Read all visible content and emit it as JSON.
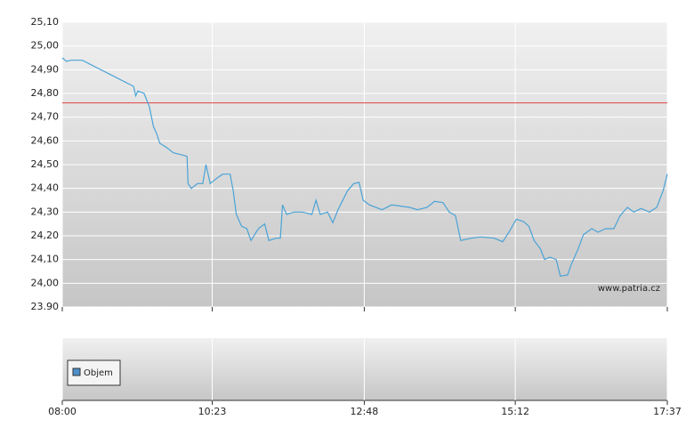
{
  "chart_data": {
    "type": "line",
    "x": [
      480,
      484,
      488,
      499,
      548,
      550,
      552,
      558,
      563,
      567,
      570,
      573,
      580,
      586,
      595,
      599,
      600,
      603,
      609,
      614,
      617,
      621,
      628,
      633,
      640,
      643,
      646,
      651,
      656,
      660,
      667,
      673,
      677,
      684,
      688,
      690,
      694,
      701,
      709,
      718,
      722,
      726,
      733,
      738,
      743,
      752,
      758,
      763,
      767,
      773,
      785,
      794,
      811,
      819,
      828,
      835,
      843,
      849,
      855,
      860,
      870,
      879,
      892,
      900,
      906,
      913,
      920,
      925,
      930,
      936,
      940,
      945,
      951,
      955,
      962,
      965,
      972,
      977,
      985,
      991,
      998,
      1006,
      1012,
      1019,
      1025,
      1032,
      1040,
      1047,
      1053,
      1057
    ],
    "series": [
      {
        "color": "#4aa3d6",
        "values": [
          24.95,
          24.935,
          24.94,
          24.94,
          24.83,
          24.79,
          24.81,
          24.8,
          24.745,
          24.66,
          24.63,
          24.59,
          24.57,
          24.55,
          24.54,
          24.535,
          24.42,
          24.4,
          24.42,
          24.42,
          24.5,
          24.42,
          24.445,
          24.46,
          24.46,
          24.39,
          24.29,
          24.24,
          24.23,
          24.18,
          24.23,
          24.25,
          24.18,
          24.19,
          24.19,
          24.33,
          24.29,
          24.3,
          24.3,
          24.29,
          24.35,
          24.29,
          24.3,
          24.255,
          24.31,
          24.39,
          24.42,
          24.425,
          24.35,
          24.33,
          24.31,
          24.33,
          24.32,
          24.31,
          24.32,
          24.345,
          24.34,
          24.3,
          24.285,
          24.18,
          24.19,
          24.195,
          24.19,
          24.175,
          24.215,
          24.27,
          24.26,
          24.24,
          24.18,
          24.145,
          24.1,
          24.11,
          24.1,
          24.03,
          24.035,
          24.075,
          24.145,
          24.205,
          24.23,
          24.215,
          24.23,
          24.23,
          24.285,
          24.32,
          24.3,
          24.315,
          24.3,
          24.32,
          24.39,
          24.46
        ]
      }
    ],
    "reference_line": {
      "value": 24.76,
      "color": "#e04040"
    },
    "xlim": [
      480,
      1057
    ],
    "xticks": [
      {
        "value": 480,
        "label": "08:00"
      },
      {
        "value": 623,
        "label": "10:23"
      },
      {
        "value": 768,
        "label": "12:48"
      },
      {
        "value": 912,
        "label": "15:12"
      },
      {
        "value": 1057,
        "label": "17:37"
      }
    ],
    "ylim": [
      23.9,
      25.1
    ],
    "yticks": [
      {
        "value": 23.9,
        "label": "23.90"
      },
      {
        "value": 24.0,
        "label": "24,00"
      },
      {
        "value": 24.1,
        "label": "24,10"
      },
      {
        "value": 24.2,
        "label": "24,20"
      },
      {
        "value": 24.3,
        "label": "24,30"
      },
      {
        "value": 24.4,
        "label": "24,40"
      },
      {
        "value": 24.5,
        "label": "24,50"
      },
      {
        "value": 24.6,
        "label": "24,60"
      },
      {
        "value": 24.7,
        "label": "24,70"
      },
      {
        "value": 24.8,
        "label": "24,80"
      },
      {
        "value": 24.9,
        "label": "24,90"
      },
      {
        "value": 25.0,
        "label": "25,00"
      },
      {
        "value": 25.1,
        "label": "25,10"
      }
    ],
    "grid": true,
    "watermark": "www.patria.cz",
    "volume_legend": {
      "name": "Objem",
      "color": "#4f8fc9"
    }
  }
}
